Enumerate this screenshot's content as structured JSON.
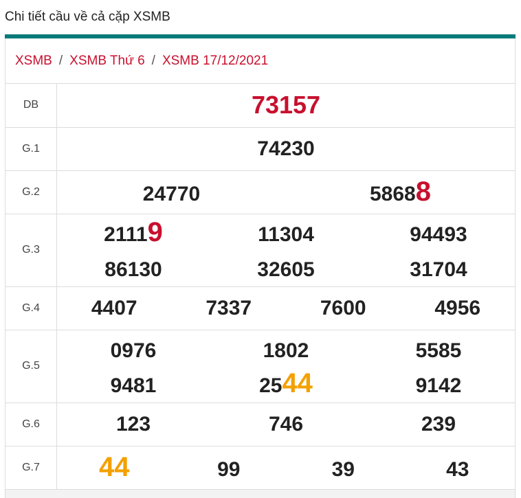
{
  "header": {
    "title": "Chi tiết cầu về cả cặp XSMB"
  },
  "breadcrumb": [
    "XSMB",
    "XSMB Thứ 6",
    "XSMB 17/12/2021"
  ],
  "colors": {
    "accent": "#0a7b7b",
    "red": "#c8102e",
    "orange": "#f4a000"
  },
  "results": {
    "db": {
      "label": "DB",
      "value": "73157"
    },
    "g1": {
      "label": "G.1",
      "values": [
        "74230"
      ]
    },
    "g2": {
      "label": "G.2",
      "values": [
        {
          "plain": "24770",
          "hl": ""
        },
        {
          "plain": "5868",
          "hl": "8"
        }
      ]
    },
    "g3": {
      "label": "G.3",
      "values": [
        {
          "plain": "2111",
          "hl": "9"
        },
        {
          "plain": "11304",
          "hl": ""
        },
        {
          "plain": "94493",
          "hl": ""
        },
        {
          "plain": "86130",
          "hl": ""
        },
        {
          "plain": "32605",
          "hl": ""
        },
        {
          "plain": "31704",
          "hl": ""
        }
      ]
    },
    "g4": {
      "label": "G.4",
      "values": [
        "4407",
        "7337",
        "7600",
        "4956"
      ]
    },
    "g5": {
      "label": "G.5",
      "values": [
        {
          "plain": "0976",
          "hl": ""
        },
        {
          "plain": "1802",
          "hl": ""
        },
        {
          "plain": "5585",
          "hl": ""
        },
        {
          "plain": "9481",
          "hl": ""
        },
        {
          "plain": "25",
          "hl": "44"
        },
        {
          "plain": "9142",
          "hl": ""
        }
      ]
    },
    "g6": {
      "label": "G.6",
      "values": [
        "123",
        "746",
        "239"
      ]
    },
    "g7": {
      "label": "G.7",
      "values": [
        {
          "plain": "",
          "hl": "44"
        },
        {
          "plain": "99",
          "hl": ""
        },
        {
          "plain": "39",
          "hl": ""
        },
        {
          "plain": "43",
          "hl": ""
        }
      ]
    }
  }
}
